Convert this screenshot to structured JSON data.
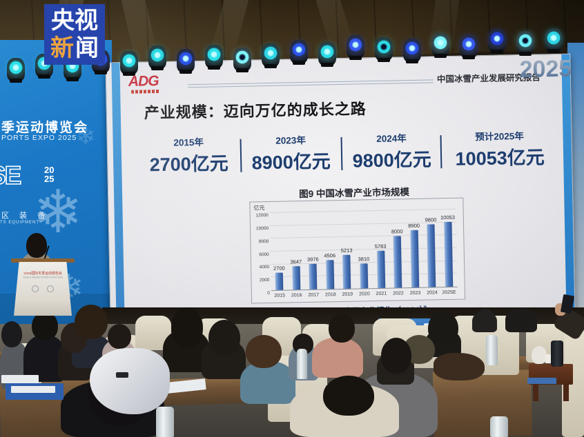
{
  "broadcaster": {
    "name": "cctv-news",
    "logo_row1": "央视",
    "logo_row2_char1": "新",
    "logo_row2_char2": "闻",
    "logo_bg": "#2644ac",
    "logo_accent": "#eda43f"
  },
  "expo_wall": {
    "line1": "季运动博览会",
    "line2": "PORTS EXPO 2025",
    "logo_se": "SE",
    "logo_year": "20\n25",
    "line3": "区 装 备",
    "line4": "TS EQUIPMENT",
    "wall_blue": "#1b78c6"
  },
  "podium": {
    "line1": "2025国际冬季运动博览会",
    "line2": "WORLD WINTER SPORTS EXPO 2025"
  },
  "slide": {
    "logo_text": "ADG",
    "header_report_title": "中国冰雪产业发展研究报告",
    "header_year": "2025",
    "title": "产业规模：迈向万亿的成长之路",
    "stats": [
      {
        "year": "2015年",
        "value": "2700亿元"
      },
      {
        "year": "2023年",
        "value": "8900亿元"
      },
      {
        "year": "2024年",
        "value": "9800亿元"
      },
      {
        "year": "预计2025年",
        "value": "10053亿元"
      }
    ],
    "source": "数据来源：《中国冰雪产业报告（2024）》",
    "accent_navy": "#1d3d6e",
    "accent_blue": "#2e86c8"
  },
  "chart_data": {
    "type": "bar",
    "title": "图9 中国冰雪产业市场规模",
    "ylabel": "亿元",
    "xlabel": "",
    "categories": [
      "2015",
      "2016",
      "2017",
      "2018",
      "2019",
      "2020",
      "2021",
      "2022",
      "2023",
      "2024",
      "2025E"
    ],
    "values": [
      2700,
      3647,
      3976,
      4506,
      5213,
      3810,
      5783,
      8000,
      8900,
      9800,
      10053
    ],
    "ylim": [
      0,
      12000
    ],
    "ytick_step": 2000,
    "grid": true,
    "legend": null,
    "bar_color": "#4d79bd"
  }
}
